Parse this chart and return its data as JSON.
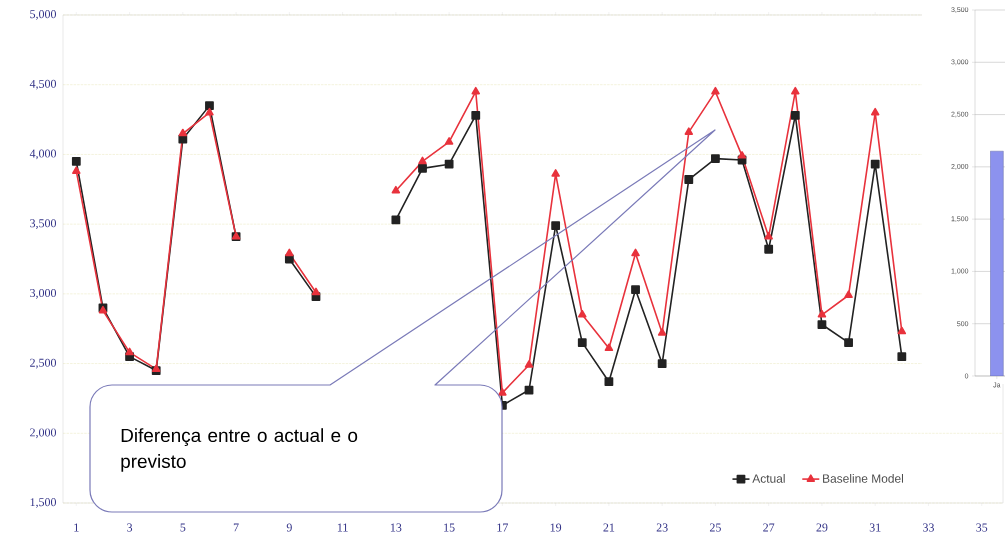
{
  "chart_data": [
    {
      "type": "line",
      "x": [
        1,
        2,
        3,
        4,
        5,
        6,
        7,
        8,
        9,
        10,
        11,
        12,
        13,
        14,
        15,
        16,
        17,
        18,
        19,
        20,
        21,
        22,
        23,
        24,
        25,
        26,
        27,
        28,
        29,
        30,
        31,
        32
      ],
      "xlim": [
        0.5,
        35.8
      ],
      "xticks": [
        1,
        3,
        5,
        7,
        9,
        11,
        13,
        15,
        17,
        19,
        21,
        23,
        25,
        27,
        29,
        31,
        33,
        35
      ],
      "ylim": [
        1500,
        5000
      ],
      "yticks": [
        {
          "value": 1500,
          "label": "1,500"
        },
        {
          "value": 2000,
          "label": "2,000"
        },
        {
          "value": 2500,
          "label": "2,500"
        },
        {
          "value": 3000,
          "label": "3,000"
        },
        {
          "value": 3500,
          "label": "3,500"
        },
        {
          "value": 4000,
          "label": "4,000"
        },
        {
          "value": 4500,
          "label": "4,500"
        },
        {
          "value": 5000,
          "label": "5,000"
        }
      ],
      "grid": "y",
      "legend": "bottom right",
      "annotations": [
        "Diferença entre o actual e o previsto"
      ],
      "series": [
        {
          "name": "Actual",
          "color": "#222222",
          "marker": "square",
          "values": [
            3950,
            2900,
            2550,
            2450,
            4110,
            4350,
            3410,
            null,
            3250,
            2980,
            null,
            null,
            3530,
            3900,
            3930,
            4280,
            2200,
            2310,
            3490,
            2650,
            2370,
            3030,
            2500,
            3820,
            3970,
            3960,
            3320,
            4280,
            2780,
            2650,
            3930,
            2550
          ]
        },
        {
          "name": "Baseline Model",
          "color": "#e8323c",
          "marker": "triangle",
          "values": [
            3880,
            2880,
            2580,
            2460,
            4150,
            4300,
            3410,
            null,
            3290,
            3010,
            null,
            null,
            3740,
            3950,
            4090,
            4450,
            2290,
            2490,
            3860,
            2850,
            2610,
            3290,
            2720,
            4160,
            4450,
            3990,
            3410,
            4450,
            2850,
            2990,
            4300,
            2730
          ]
        }
      ]
    },
    {
      "type": "bar",
      "categories": [
        "Ja"
      ],
      "values": [
        2150
      ],
      "color": "#8c92ee",
      "ylim": [
        0,
        3500
      ],
      "grid": "y",
      "yticks": [
        0,
        500,
        {
          "value": 1000,
          "label": "1,000"
        },
        {
          "value": 1500,
          "label": "1,500"
        },
        {
          "value": 2000,
          "label": "2,000"
        },
        {
          "value": 2500,
          "label": "2,500"
        },
        {
          "value": 3000,
          "label": "3,000"
        },
        {
          "value": 3500,
          "label": "3,500"
        }
      ]
    }
  ]
}
